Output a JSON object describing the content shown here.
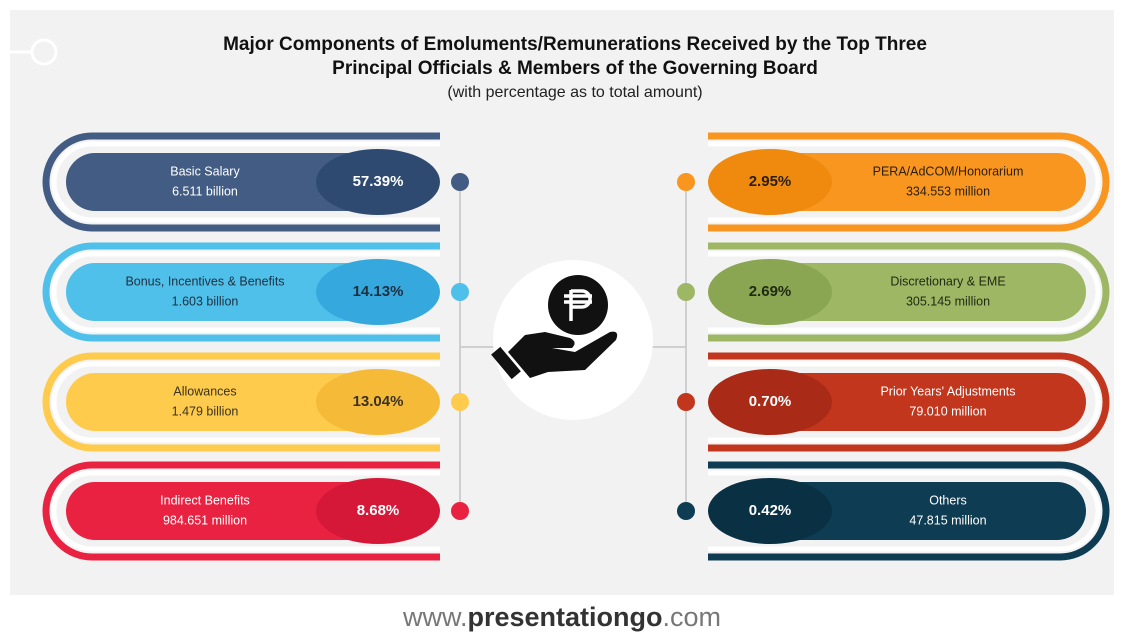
{
  "header": {
    "title_line1": "Major Components of Emoluments/Remunerations Received by the Top Three",
    "title_line2": "Principal Officials & Members of the Governing Board",
    "subtitle": "(with percentage as to total amount)"
  },
  "items": [
    {
      "side": "left",
      "label": "Basic Salary",
      "amount": "6.511 billion",
      "percent": "57.39%",
      "color": "#425c84",
      "accent": "#2f4a70",
      "text_color": "#ffffff"
    },
    {
      "side": "left",
      "label": "Bonus, Incentives & Benefits",
      "amount": "1.603 billion",
      "percent": "14.13%",
      "color": "#4fc0ea",
      "accent": "#35a9dd",
      "text_color": "#1f2f40"
    },
    {
      "side": "left",
      "label": "Allowances",
      "amount": "1.479 billion",
      "percent": "13.04%",
      "color": "#fecb4c",
      "accent": "#f6ba39",
      "text_color": "#3a3320"
    },
    {
      "side": "left",
      "label": "Indirect Benefits",
      "amount": "984.651 million",
      "percent": "8.68%",
      "color": "#ea2241",
      "accent": "#d61838",
      "text_color": "#ffffff"
    },
    {
      "side": "right",
      "label": "PERA/AdCOM/Honorarium",
      "amount": "334.553 million",
      "percent": "2.95%",
      "color": "#f8961f",
      "accent": "#ef8a0f",
      "text_color": "#2a1f10"
    },
    {
      "side": "right",
      "label": "Discretionary & EME",
      "amount": "305.145 million",
      "percent": "2.69%",
      "color": "#9db765",
      "accent": "#8aa653",
      "text_color": "#1f2a10"
    },
    {
      "side": "right",
      "label": "Prior Years' Adjustments",
      "amount": "79.010 million",
      "percent": "0.70%",
      "color": "#c2361e",
      "accent": "#a92b17",
      "text_color": "#ffffff"
    },
    {
      "side": "right",
      "label": "Others",
      "amount": "47.815 million",
      "percent": "0.42%",
      "color": "#0e3c53",
      "accent": "#0a3043",
      "text_color": "#ffffff"
    }
  ],
  "footer": {
    "prefix": "www.",
    "brand": "presentationgo",
    "suffix": ".com"
  }
}
